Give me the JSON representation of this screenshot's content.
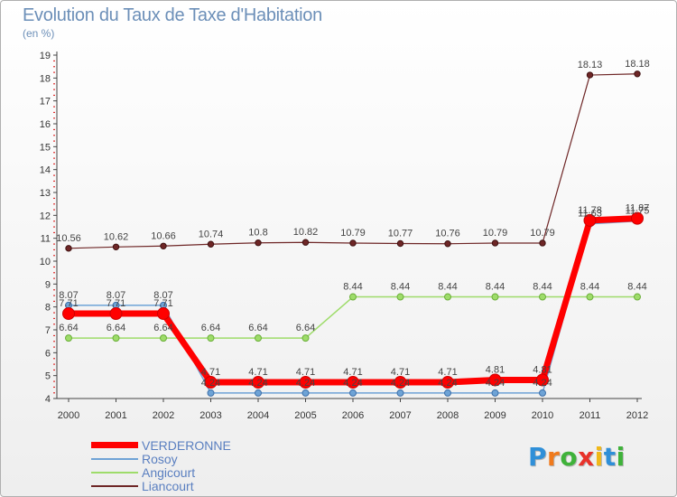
{
  "title": "Evolution du Taux de Taxe d'Habitation",
  "subtitle": "(en %)",
  "logo": {
    "text": "Proxiti"
  },
  "chart_data": {
    "type": "line",
    "title": "Evolution du Taux de Taxe d'Habitation",
    "ylabel": "(en %)",
    "xlabel": "",
    "x": [
      "2000",
      "2001",
      "2002",
      "2003",
      "2004",
      "2005",
      "2006",
      "2007",
      "2008",
      "2009",
      "2010",
      "2011",
      "2012"
    ],
    "ylim": [
      4,
      19
    ],
    "yticks": [
      "4",
      "5",
      "6",
      "7",
      "8",
      "9",
      "10",
      "11",
      "12",
      "13",
      "14",
      "15",
      "16",
      "17",
      "18",
      "19"
    ],
    "grid": "none",
    "legend": "bottom-left",
    "series": [
      {
        "name": "VERDERONNE",
        "color": "#ff0000",
        "values": [
          7.71,
          7.71,
          7.71,
          4.71,
          4.71,
          4.71,
          4.71,
          4.71,
          4.71,
          4.81,
          4.81,
          11.78,
          11.87
        ],
        "labels": [
          "7.71",
          "7.71",
          "7.71",
          "4.71",
          "4.71",
          "4.71",
          "4.71",
          "4.71",
          "4.71",
          "4.81",
          "4.81",
          "11.78",
          "11.87"
        ]
      },
      {
        "name": "Rosoy",
        "color": "#6ea3d6",
        "values": [
          8.07,
          8.07,
          8.07,
          4.24,
          4.24,
          4.24,
          4.24,
          4.24,
          4.24,
          4.24,
          4.24,
          11.63,
          11.75
        ],
        "labels": [
          "8.07",
          "8.07",
          "8.07",
          "4.24",
          "4.24",
          "4.24",
          "4.24",
          "4.24",
          "4.24",
          "4.24",
          "4.24",
          "11.63",
          "11.75"
        ]
      },
      {
        "name": "Angicourt",
        "color": "#9edc6a",
        "values": [
          6.64,
          6.64,
          6.64,
          6.64,
          6.64,
          6.64,
          8.44,
          8.44,
          8.44,
          8.44,
          8.44,
          8.44,
          8.44
        ],
        "labels": [
          "6.64",
          "6.64",
          "6.64",
          "6.64",
          "6.64",
          "6.64",
          "8.44",
          "8.44",
          "8.44",
          "8.44",
          "8.44",
          "8.44",
          "8.44"
        ]
      },
      {
        "name": "Liancourt",
        "color": "#6e2626",
        "values": [
          10.56,
          10.62,
          10.66,
          10.74,
          10.8,
          10.82,
          10.79,
          10.77,
          10.76,
          10.79,
          10.79,
          18.13,
          18.18
        ],
        "labels": [
          "10.56",
          "10.62",
          "10.66",
          "10.74",
          "10.8",
          "10.82",
          "10.79",
          "10.77",
          "10.76",
          "10.79",
          "10.79",
          "18.13",
          "18.18"
        ]
      }
    ]
  }
}
